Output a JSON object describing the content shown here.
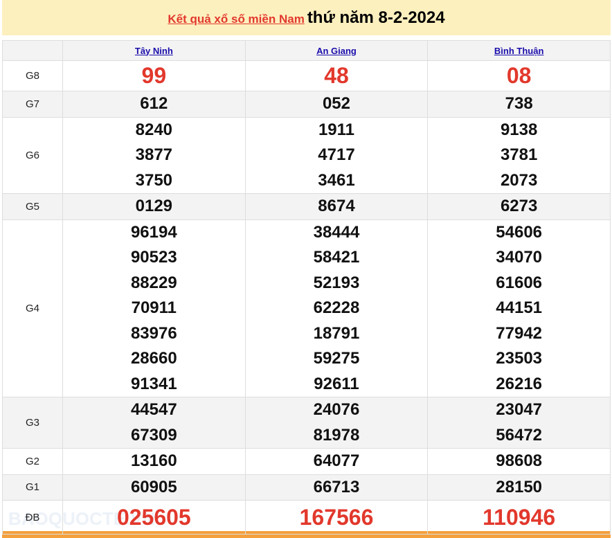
{
  "header": {
    "link": "Kết quả xổ số miền Nam",
    "date": "thứ năm 8-2-2024"
  },
  "provinces": [
    "Tây Ninh",
    "An Giang",
    "Bình Thuận"
  ],
  "prizes": [
    {
      "label": "G8",
      "values": [
        [
          "99"
        ],
        [
          "48"
        ],
        [
          "08"
        ]
      ]
    },
    {
      "label": "G7",
      "values": [
        [
          "612"
        ],
        [
          "052"
        ],
        [
          "738"
        ]
      ]
    },
    {
      "label": "G6",
      "values": [
        [
          "8240",
          "3877",
          "3750"
        ],
        [
          "1911",
          "4717",
          "3461"
        ],
        [
          "9138",
          "3781",
          "2073"
        ]
      ]
    },
    {
      "label": "G5",
      "values": [
        [
          "0129"
        ],
        [
          "8674"
        ],
        [
          "6273"
        ]
      ]
    },
    {
      "label": "G4",
      "values": [
        [
          "96194",
          "90523",
          "88229",
          "70911",
          "83976",
          "28660",
          "91341"
        ],
        [
          "38444",
          "58421",
          "52193",
          "62228",
          "18791",
          "59275",
          "92611"
        ],
        [
          "54606",
          "34070",
          "61606",
          "44151",
          "77942",
          "23503",
          "26216"
        ]
      ]
    },
    {
      "label": "G3",
      "values": [
        [
          "44547",
          "67309"
        ],
        [
          "24076",
          "81978"
        ],
        [
          "23047",
          "56472"
        ]
      ]
    },
    {
      "label": "G2",
      "values": [
        [
          "13160"
        ],
        [
          "64077"
        ],
        [
          "98608"
        ]
      ]
    },
    {
      "label": "G1",
      "values": [
        [
          "60905"
        ],
        [
          "66713"
        ],
        [
          "28150"
        ]
      ]
    },
    {
      "label": "ĐB",
      "values": [
        [
          "025605"
        ],
        [
          "167566"
        ],
        [
          "110946"
        ]
      ]
    }
  ],
  "watermark": "BAOQUOCTE.VN"
}
